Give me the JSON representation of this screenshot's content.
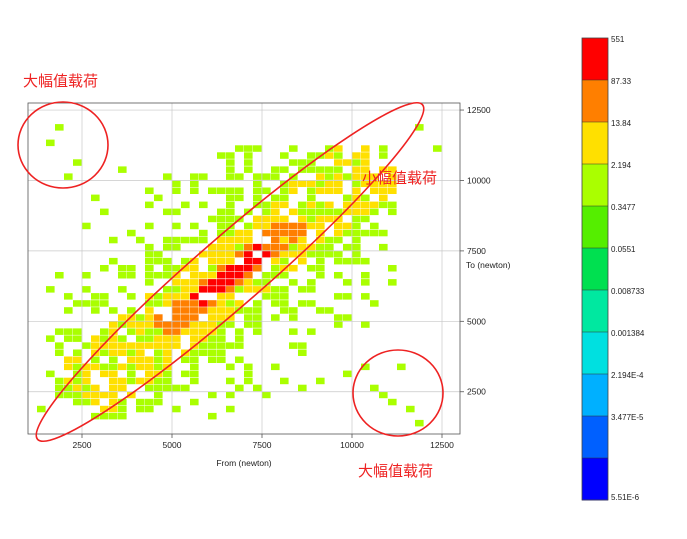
{
  "chart_data": {
    "type": "heatmap",
    "title": "",
    "xlabel": "From (newton)",
    "ylabel": "To (newton)",
    "xlim": [
      1000,
      13000
    ],
    "ylim": [
      1000,
      12750
    ],
    "x_ticks": [
      "2500",
      "5000",
      "7500",
      "10000",
      "12500"
    ],
    "y_ticks": [
      "2500",
      "5000",
      "7500",
      "10000",
      "12500"
    ],
    "grid": true,
    "color_scale": {
      "labels": [
        "551",
        "87.33",
        "13.84",
        "2.194",
        "0.3477",
        "0.0551",
        "0.008733",
        "0.001384",
        "2.194E-4",
        "3.477E-5",
        "5.51E-6"
      ],
      "colors": [
        "#ff0000",
        "#ff7f00",
        "#ffe000",
        "#aaff00",
        "#55ee00",
        "#00e050",
        "#00e8a0",
        "#00e0e0",
        "#00b0ff",
        "#0060ff",
        "#0000ff"
      ]
    },
    "annotations": [
      {
        "id": "large-top-left",
        "text": "大幅值载荷"
      },
      {
        "id": "small-diagonal",
        "text": "小幅值载荷"
      },
      {
        "id": "large-bottom-right",
        "text": "大幅值载荷"
      }
    ],
    "cells": {
      "bin_size": 250,
      "sparse_points": [
        [
          1500,
          11200,
          2
        ],
        [
          1750,
          11750,
          2
        ],
        [
          2250,
          10500,
          2
        ],
        [
          2000,
          10000,
          2
        ],
        [
          2750,
          9250,
          2
        ],
        [
          3000,
          8750,
          2
        ],
        [
          2500,
          8250,
          2
        ],
        [
          3250,
          7750,
          2
        ],
        [
          3500,
          10250,
          2
        ],
        [
          4250,
          9500,
          2
        ],
        [
          4750,
          10000,
          2
        ],
        [
          5500,
          9750,
          2
        ],
        [
          6000,
          9500,
          2
        ],
        [
          6750,
          9250,
          2
        ],
        [
          7250,
          9750,
          2
        ],
        [
          8000,
          9500,
          2
        ],
        [
          8500,
          10250,
          2
        ],
        [
          9000,
          9750,
          2
        ],
        [
          9500,
          9500,
          2
        ],
        [
          10000,
          9250,
          2
        ],
        [
          9500,
          8500,
          2
        ],
        [
          10000,
          8000,
          2
        ],
        [
          9000,
          7500,
          2
        ],
        [
          2500,
          6500,
          2
        ],
        [
          2750,
          5500,
          2
        ],
        [
          3000,
          4500,
          2
        ],
        [
          3250,
          3250,
          2
        ],
        [
          3750,
          2750,
          2
        ],
        [
          4250,
          3000,
          2
        ],
        [
          4750,
          2500,
          2
        ],
        [
          5500,
          2750,
          2
        ],
        [
          6000,
          2250,
          2
        ],
        [
          6750,
          2500,
          2
        ],
        [
          7500,
          2250,
          2
        ],
        [
          8000,
          2750,
          2
        ],
        [
          8500,
          2500,
          2
        ],
        [
          9000,
          2750,
          2
        ],
        [
          9750,
          3000,
          2
        ],
        [
          10250,
          3250,
          2
        ],
        [
          10500,
          2500,
          2
        ],
        [
          10750,
          2250,
          2
        ],
        [
          11000,
          2000,
          2
        ],
        [
          11500,
          1750,
          2
        ],
        [
          11750,
          1250,
          2
        ],
        [
          11250,
          3250,
          2
        ],
        [
          10250,
          4750,
          2
        ],
        [
          10500,
          5500,
          2
        ],
        [
          9750,
          6250,
          2
        ],
        [
          1250,
          1750,
          2
        ],
        [
          1750,
          2250,
          2
        ],
        [
          12250,
          11000,
          2
        ],
        [
          11750,
          11750,
          2
        ]
      ]
    }
  }
}
